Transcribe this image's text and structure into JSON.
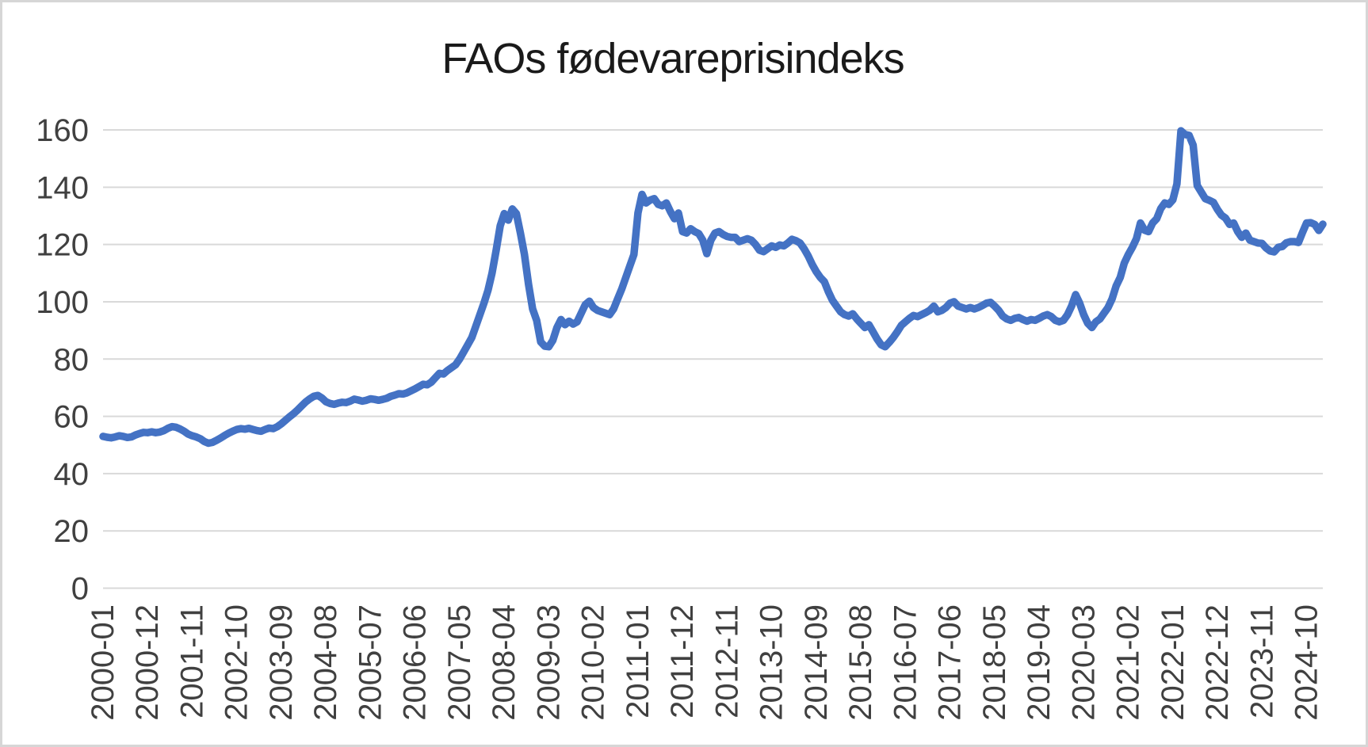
{
  "frame": {
    "background": "#ffffff",
    "border_color": "#d6d6d6"
  },
  "chart_data": {
    "type": "line",
    "title": "FAOs fødevareprisindeks",
    "title_color": "#1a1a1a",
    "xlabel": "",
    "ylabel": "",
    "legend": "none",
    "grid": "horizontal",
    "grid_color": "#d9d9d9",
    "axis_label_color": "#404040",
    "line_color": "#4472C4",
    "line_width": 9.5,
    "ylim": [
      0,
      160
    ],
    "y_ticks": [
      0,
      20,
      40,
      60,
      80,
      100,
      120,
      140,
      160
    ],
    "x_monthly_start": "2000-01",
    "x_monthly_end": "2025-02",
    "x_tick_interval_months": 11,
    "x_tick_labels": [
      "2000-01",
      "2000-12",
      "2001-11",
      "2002-10",
      "2003-09",
      "2004-08",
      "2005-07",
      "2006-06",
      "2007-05",
      "2008-04",
      "2009-03",
      "2010-02",
      "2011-01",
      "2011-12",
      "2012-11",
      "2013-10",
      "2014-09",
      "2015-08",
      "2016-07",
      "2017-06",
      "2018-05",
      "2019-04",
      "2020-03",
      "2021-02",
      "2022-01",
      "2022-12",
      "2023-11",
      "2024-10"
    ],
    "series": [
      {
        "name": "FAOs fødevareprisindeks",
        "values": [
          53.0,
          52.7,
          52.5,
          52.8,
          53.2,
          53.0,
          52.6,
          52.8,
          53.5,
          54.0,
          54.4,
          54.3,
          54.6,
          54.3,
          54.5,
          55.0,
          55.8,
          56.4,
          56.2,
          55.6,
          54.8,
          53.8,
          53.2,
          52.8,
          52.2,
          51.2,
          50.6,
          50.9,
          51.6,
          52.4,
          53.3,
          54.1,
          54.8,
          55.4,
          55.7,
          55.5,
          55.8,
          55.4,
          55.0,
          54.8,
          55.4,
          55.9,
          55.7,
          56.4,
          57.4,
          58.6,
          59.8,
          60.9,
          62.2,
          63.6,
          65.0,
          66.1,
          67.0,
          67.3,
          66.4,
          65.1,
          64.5,
          64.2,
          64.6,
          64.9,
          64.8,
          65.3,
          66.0,
          65.7,
          65.3,
          65.6,
          66.1,
          65.9,
          65.6,
          65.9,
          66.3,
          67.0,
          67.4,
          67.9,
          67.8,
          68.2,
          68.9,
          69.6,
          70.4,
          71.2,
          71.0,
          71.9,
          73.5,
          75.0,
          74.8,
          76.0,
          77.0,
          78.0,
          80.0,
          82.5,
          85.0,
          87.5,
          91.5,
          95.5,
          99.5,
          104.0,
          110.0,
          118.0,
          126.5,
          130.8,
          128.5,
          132.4,
          130.8,
          124.0,
          116.5,
          106.0,
          97.5,
          93.5,
          86.0,
          84.5,
          84.3,
          86.5,
          91.0,
          93.8,
          92.0,
          93.2,
          92.2,
          93.0,
          96.0,
          99.0,
          100.2,
          98.0,
          97.0,
          96.5,
          96.0,
          95.5,
          97.5,
          101.0,
          104.5,
          108.5,
          112.5,
          116.5,
          131.0,
          137.5,
          134.5,
          135.5,
          136.0,
          134.0,
          133.5,
          134.5,
          131.5,
          129.0,
          131.0,
          124.5,
          124.0,
          125.5,
          124.5,
          123.8,
          121.5,
          116.8,
          121.5,
          124.0,
          124.5,
          123.5,
          122.8,
          122.5,
          122.5,
          121.0,
          121.5,
          122.0,
          121.5,
          120.0,
          118.0,
          117.5,
          118.5,
          119.5,
          119.0,
          119.8,
          119.5,
          120.5,
          121.8,
          121.3,
          120.5,
          118.5,
          116.0,
          113.0,
          110.5,
          108.5,
          107.0,
          103.5,
          100.5,
          98.5,
          96.5,
          95.5,
          95.0,
          95.8,
          94.0,
          92.5,
          91.0,
          92.0,
          89.5,
          87.0,
          85.0,
          84.3,
          85.8,
          87.5,
          89.5,
          91.8,
          93.0,
          94.2,
          95.2,
          94.8,
          95.5,
          96.2,
          97.0,
          98.5,
          96.5,
          97.0,
          98.0,
          99.5,
          100.0,
          98.5,
          98.0,
          97.5,
          98.0,
          97.5,
          98.0,
          98.7,
          99.5,
          99.8,
          98.5,
          97.0,
          95.0,
          94.0,
          93.5,
          94.2,
          94.5,
          93.8,
          93.2,
          93.8,
          93.5,
          94.2,
          95.0,
          95.5,
          94.8,
          93.5,
          93.0,
          93.5,
          95.5,
          98.5,
          102.5,
          99.5,
          95.5,
          92.5,
          91.0,
          93.0,
          94.0,
          96.0,
          98.0,
          101.0,
          105.5,
          108.5,
          113.5,
          116.5,
          119.0,
          122.0,
          127.5,
          125.0,
          124.5,
          127.5,
          129.0,
          132.5,
          134.5,
          134.0,
          135.6,
          141.1,
          159.7,
          158.4,
          158.1,
          154.7,
          140.6,
          138.3,
          136.0,
          135.4,
          134.7,
          132.2,
          130.2,
          129.2,
          127.0,
          127.5,
          124.5,
          122.5,
          124.0,
          121.5,
          121.0,
          120.5,
          120.4,
          118.8,
          117.7,
          117.4,
          119.0,
          119.3,
          120.6,
          121.0,
          121.0,
          120.7,
          124.2,
          127.5,
          127.6,
          127.0,
          124.9,
          127.1
        ]
      }
    ]
  }
}
